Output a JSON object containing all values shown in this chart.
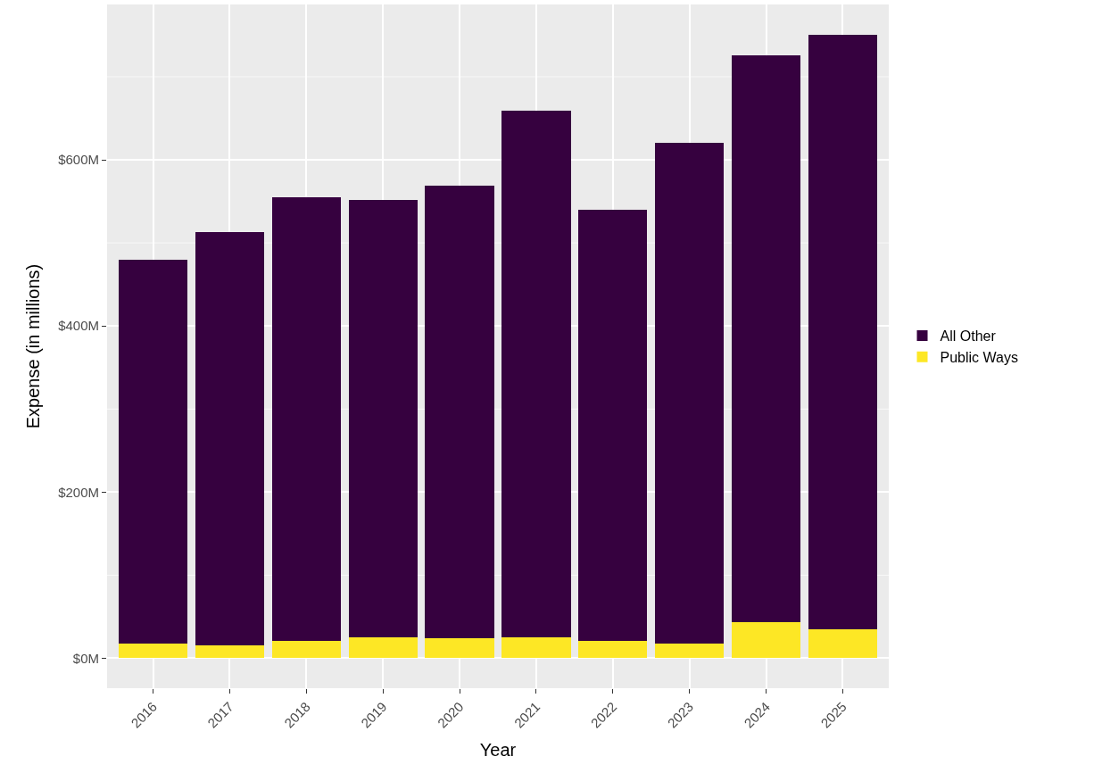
{
  "chart_data": {
    "type": "bar",
    "stacked": true,
    "xlabel": "Year",
    "ylabel": "Expense (in millions)",
    "categories": [
      "2016",
      "2017",
      "2018",
      "2019",
      "2020",
      "2021",
      "2022",
      "2023",
      "2024",
      "2025"
    ],
    "series": [
      {
        "name": "Public Ways",
        "color": "#fde725",
        "values": [
          18,
          16,
          21,
          25,
          24,
          25,
          21,
          18,
          43,
          35
        ]
      },
      {
        "name": "All Other",
        "color": "#36013f",
        "values": [
          462,
          497,
          534,
          527,
          545,
          634,
          519,
          602,
          683,
          715
        ]
      }
    ],
    "ylim": [
      -36,
      787
    ],
    "yticks": [
      {
        "value": 0,
        "label": "$0M"
      },
      {
        "value": 100,
        "label": null
      },
      {
        "value": 200,
        "label": "$200M"
      },
      {
        "value": 300,
        "label": null
      },
      {
        "value": 400,
        "label": "$400M"
      },
      {
        "value": 500,
        "label": null
      },
      {
        "value": 600,
        "label": "$600M"
      },
      {
        "value": 700,
        "label": null
      }
    ],
    "grid": true,
    "legend": "right"
  }
}
